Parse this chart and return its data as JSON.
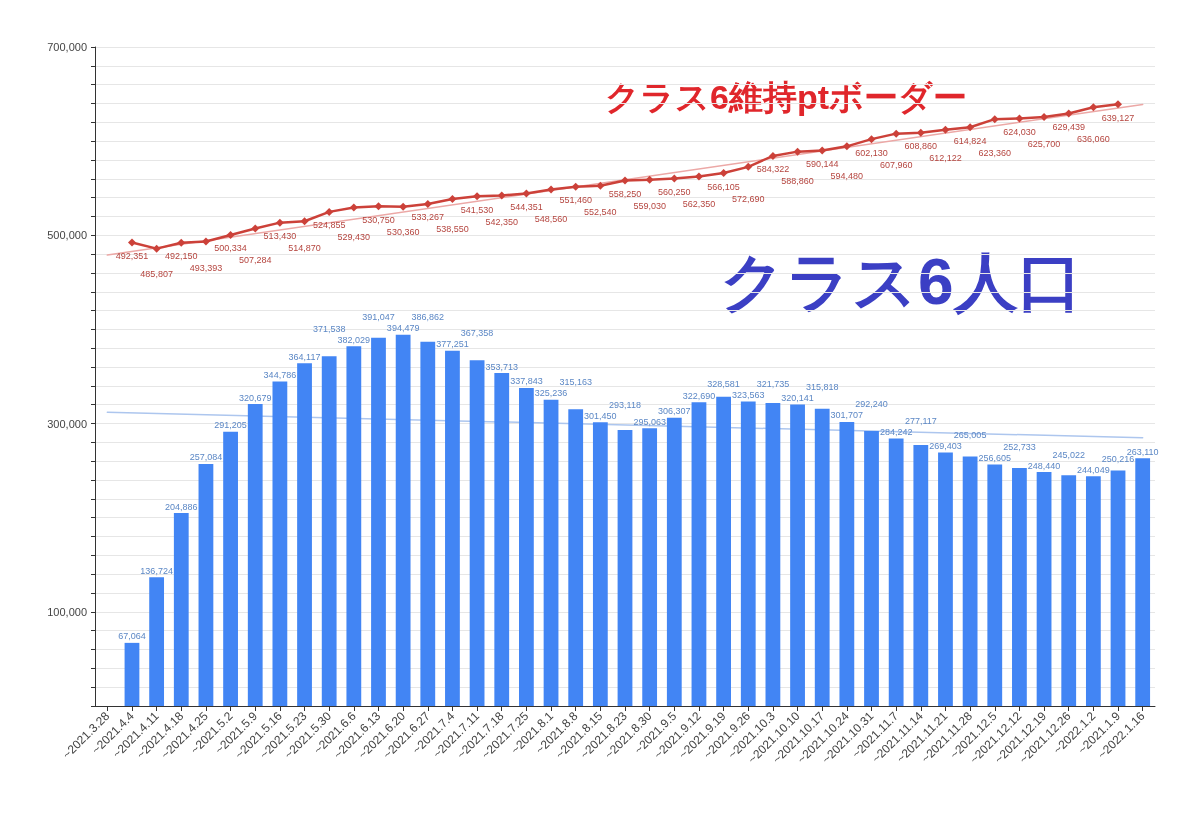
{
  "chart_data": {
    "type": "bar",
    "categories": [
      "~2021.3.28",
      "~2021.4.4",
      "~2021.4.11",
      "~2021.4.18",
      "~2021.4.25",
      "~2021.5.2",
      "~2021.5.9",
      "~2021.5.16",
      "~2021.5.23",
      "~2021.5.30",
      "~2021.6.6",
      "~2021.6.13",
      "~2021.6.20",
      "~2021.6.27",
      "~2021.7.4",
      "~2021.7.11",
      "~2021.7.18",
      "~2021.7.25",
      "~2021.8.1",
      "~2021.8.8",
      "~2021.8.15",
      "~2021.8.23",
      "~2021.8.30",
      "~2021.9.5",
      "~2021.9.12",
      "~2021.9.19",
      "~2021.9.26",
      "~2021.10.3",
      "~2021.10.10",
      "~2021.10.17",
      "~2021.10.24",
      "~2021.10.31",
      "~2021.11.7",
      "~2021.11.14",
      "~2021.11.21",
      "~2021.11.28",
      "~2021.12.5",
      "~2021.12.12",
      "~2021.12.19",
      "~2021.12.26",
      "~2022.1.2",
      "~2021.1.9",
      "~2022.1.16"
    ],
    "series": [
      {
        "name": "クラス6人口",
        "color": "#4285f4",
        "values": [
          null,
          67064,
          136724,
          204886,
          257084,
          291205,
          320679,
          344786,
          364117,
          371538,
          382029,
          391047,
          394479,
          386862,
          377251,
          367358,
          353713,
          337843,
          325236,
          315163,
          301450,
          293118,
          295063,
          306307,
          322690,
          328581,
          323563,
          321735,
          320141,
          315818,
          301707,
          292240,
          284242,
          277117,
          269403,
          265005,
          256605,
          252733,
          248440,
          245022,
          244049,
          250216,
          263110
        ],
        "value_labels": [
          null,
          "67,064",
          "136,724",
          "204,886",
          "257,084",
          "291,205",
          "320,679",
          "344,786",
          "364,117",
          "371,538",
          "382,029",
          "391,047",
          "394,479",
          "386,862",
          "377,251",
          "367,358",
          "353,713",
          "337,843",
          "325,236",
          "315,163",
          "301,450",
          "293,118",
          "295,063",
          "306,307",
          "322,690",
          "328,581",
          "323,563",
          "321,735",
          "320,141",
          "315,818",
          "301,707",
          "292,240",
          "284,242",
          "277,117",
          "269,403",
          "265,005",
          "256,605",
          "252,733",
          "248,440",
          "245,022",
          "244,049",
          "250,216",
          "263,110"
        ]
      },
      {
        "name": "クラス6維持ptボーダー",
        "type": "line",
        "color": "#cc4139",
        "marker": "diamond",
        "values": [
          null,
          492351,
          485807,
          492150,
          493393,
          500334,
          507284,
          513430,
          514870,
          524855,
          529430,
          530750,
          530360,
          533267,
          538550,
          541530,
          542350,
          544351,
          548560,
          551460,
          552540,
          558250,
          559030,
          560250,
          562350,
          566105,
          572690,
          584322,
          588860,
          590144,
          594480,
          602130,
          607960,
          608860,
          612122,
          614824,
          623360,
          624030,
          625700,
          629439,
          636060,
          639127,
          null
        ],
        "value_labels": [
          null,
          "492,351",
          "485,807",
          "492,150",
          "493,393",
          "500,334",
          "507,284",
          "513,430",
          "514,870",
          "524,855",
          "529,430",
          "530,750",
          "530,360",
          "533,267",
          "538,550",
          "541,530",
          "542,350",
          "544,351",
          "548,560",
          "551,460",
          "552,540",
          "558,250",
          "559,030",
          "560,250",
          "562,350",
          "566,105",
          "572,690",
          "584,322",
          "588,860",
          "590,144",
          "594,480",
          "602,130",
          "607,960",
          "608,860",
          "612,122",
          "614,824",
          "623,360",
          "624,030",
          "625,700",
          "629,439",
          "636,060",
          "639,127",
          null
        ]
      },
      {
        "type": "line",
        "color": "#adc6ee",
        "marker": "none",
        "x": [
          "~2021.3.28",
          "~2022.1.16"
        ],
        "values": [
          312000,
          285000
        ]
      },
      {
        "type": "line",
        "color": "#eca8a6",
        "marker": "none",
        "x": [
          "~2021.3.28",
          "~2022.1.16"
        ],
        "values": [
          479000,
          639000
        ]
      }
    ],
    "ylim": [
      0,
      700000
    ],
    "yticks": [
      {
        "value": 0,
        "label": null
      },
      {
        "value": 20000,
        "label": null
      },
      {
        "value": 40000,
        "label": null
      },
      {
        "value": 60000,
        "label": null
      },
      {
        "value": 80000,
        "label": null
      },
      {
        "value": 100000,
        "label": "100,000"
      },
      {
        "value": 120000,
        "label": null
      },
      {
        "value": 140000,
        "label": null
      },
      {
        "value": 160000,
        "label": null
      },
      {
        "value": 180000,
        "label": null
      },
      {
        "value": 200000,
        "label": null
      },
      {
        "value": 220000,
        "label": null
      },
      {
        "value": 240000,
        "label": null
      },
      {
        "value": 260000,
        "label": null
      },
      {
        "value": 280000,
        "label": null
      },
      {
        "value": 300000,
        "label": "300,000"
      },
      {
        "value": 320000,
        "label": null
      },
      {
        "value": 340000,
        "label": null
      },
      {
        "value": 360000,
        "label": null
      },
      {
        "value": 380000,
        "label": null
      },
      {
        "value": 400000,
        "label": null
      },
      {
        "value": 420000,
        "label": null
      },
      {
        "value": 440000,
        "label": null
      },
      {
        "value": 460000,
        "label": null
      },
      {
        "value": 480000,
        "label": null
      },
      {
        "value": 500000,
        "label": "500,000"
      },
      {
        "value": 520000,
        "label": null
      },
      {
        "value": 540000,
        "label": null
      },
      {
        "value": 560000,
        "label": null
      },
      {
        "value": 580000,
        "label": null
      },
      {
        "value": 600000,
        "label": null
      },
      {
        "value": 620000,
        "label": null
      },
      {
        "value": 640000,
        "label": null
      },
      {
        "value": 660000,
        "label": null
      },
      {
        "value": 680000,
        "label": null
      },
      {
        "value": 700000,
        "label": "700,000"
      }
    ],
    "grid": "y",
    "legend": false
  }
}
